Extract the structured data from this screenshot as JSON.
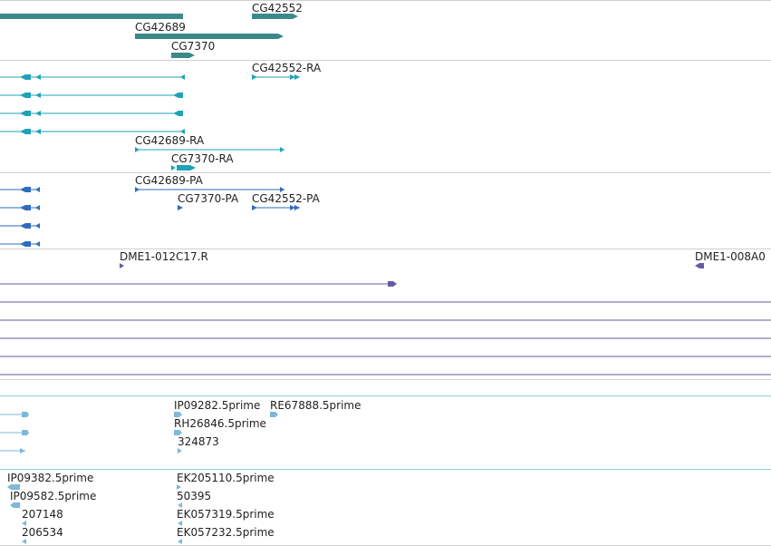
{
  "colors": {
    "gene": "#3a8a8a",
    "transcript": "#1ea3b8",
    "protein": "#2f6bbf",
    "clone": "#6a5aa6",
    "est": "#7fb8d8",
    "separator_gray": "#cfcfcf",
    "separator_blue": "#8ccfd6"
  },
  "genes": {
    "labels": [
      "CG42552",
      "CG42689",
      "CG7370"
    ]
  },
  "transcripts": {
    "labels": [
      "CG42552-RA",
      "CG42689-RA",
      "CG7370-RA"
    ]
  },
  "proteins": {
    "labels": [
      "CG42689-PA",
      "CG7370-PA",
      "CG42552-PA"
    ]
  },
  "clones": {
    "labels": [
      "DME1-012C17.R",
      "DME1-008A0"
    ]
  },
  "est_a": {
    "labels": [
      "IP09282.5prime",
      "RE67888.5prime",
      "RH26846.5prime",
      "324873"
    ]
  },
  "est_b": {
    "labels": [
      "IP09382.5prime",
      "EK205110.5prime",
      "IP09582.5prime",
      "50395",
      "207148",
      "EK057319.5prime",
      "206534",
      "EK057232.5prime"
    ]
  }
}
